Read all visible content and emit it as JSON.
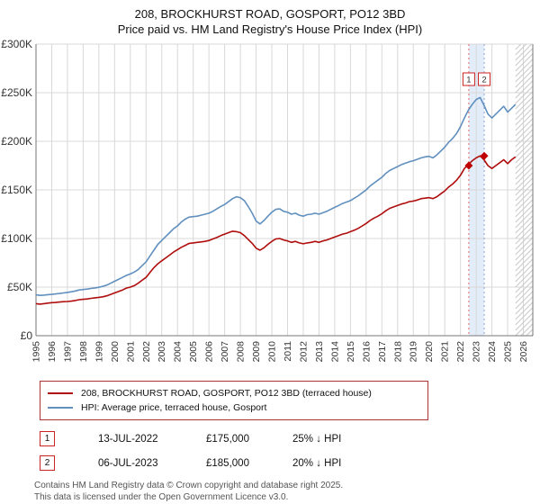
{
  "header": {
    "title": "208, BROCKHURST ROAD, GOSPORT, PO12 3BD",
    "subtitle": "Price paid vs. HM Land Registry's House Price Index (HPI)"
  },
  "chart_data": {
    "type": "line",
    "unit": "GBP thousands",
    "x_range": [
      1995,
      2026.6
    ],
    "ylim": [
      0,
      300
    ],
    "x_start": 1995.0,
    "x_step": 0.25,
    "x_ticks": [
      1995,
      1996,
      1997,
      1998,
      1999,
      2000,
      2001,
      2002,
      2003,
      2004,
      2005,
      2006,
      2007,
      2008,
      2009,
      2010,
      2011,
      2012,
      2013,
      2014,
      2015,
      2016,
      2017,
      2018,
      2019,
      2020,
      2021,
      2022,
      2023,
      2024,
      2025,
      2026
    ],
    "y_ticks": [
      {
        "value": 0,
        "label": "£0"
      },
      {
        "value": 50,
        "label": "£50K"
      },
      {
        "value": 100,
        "label": "£100K"
      },
      {
        "value": 150,
        "label": "£150K"
      },
      {
        "value": 200,
        "label": "£200K"
      },
      {
        "value": 250,
        "label": "£250K"
      },
      {
        "value": 300,
        "label": "£300K"
      }
    ],
    "series": [
      {
        "name": "price-paid",
        "label": "208, BROCKHURST ROAD, GOSPORT, PO12 3BD (terraced house)",
        "color": "#b00d0d",
        "values": [
          33,
          32.5,
          33,
          33.5,
          34,
          34.2,
          34.6,
          35,
          35.2,
          35.6,
          36.2,
          37,
          37.4,
          37.8,
          38.4,
          39,
          39.4,
          40,
          41,
          42.5,
          44,
          45.5,
          47,
          49,
          50,
          51.5,
          54,
          57,
          60,
          65,
          70,
          74,
          77,
          80,
          83,
          86,
          88.5,
          91,
          93,
          95,
          95.5,
          96,
          96.5,
          97,
          98,
          99.5,
          101,
          103,
          104.5,
          106,
          107.5,
          107,
          106,
          103,
          99,
          95,
          90,
          88,
          90.5,
          94,
          97,
          99.5,
          100,
          98.5,
          97.5,
          96,
          97,
          95.5,
          94.5,
          95.5,
          96,
          97,
          96,
          97.5,
          98.5,
          100,
          101.5,
          103,
          104.5,
          105.5,
          107,
          108.5,
          110.5,
          113,
          115.5,
          118.5,
          121,
          123,
          125.5,
          128.5,
          131,
          132.5,
          134,
          135.5,
          136.5,
          138,
          138.5,
          139.5,
          141,
          141.5,
          142,
          141,
          143,
          146,
          149,
          153,
          156,
          160,
          165,
          172,
          176,
          180,
          183,
          185,
          181,
          175,
          172,
          175,
          178,
          181,
          177,
          181,
          184
        ]
      },
      {
        "name": "hpi",
        "label": "HPI: Average price, terraced house, Gosport",
        "color": "#6190bf",
        "values": [
          42,
          41.5,
          41.8,
          42.2,
          42.5,
          43,
          43.4,
          44,
          44.5,
          45.2,
          46,
          47,
          47.5,
          48,
          48.6,
          49.2,
          49.8,
          50.8,
          52,
          54,
          56,
          58,
          60,
          62,
          63.5,
          65.5,
          68,
          72,
          76,
          82,
          88,
          94,
          98,
          102,
          106,
          110,
          113,
          117,
          120,
          122,
          122.5,
          123,
          124,
          125,
          126,
          128,
          130.5,
          133,
          135,
          138,
          141,
          143,
          142,
          139,
          133,
          126,
          118,
          115,
          118.5,
          123,
          127,
          130,
          130.5,
          128,
          127,
          125,
          126,
          124,
          123,
          124.5,
          125,
          126,
          125,
          126.5,
          128,
          130,
          132,
          134,
          136,
          137.5,
          139,
          141.5,
          144,
          147,
          150,
          154,
          157,
          160,
          163,
          167,
          170,
          172,
          174,
          176,
          177.5,
          179,
          180,
          181.5,
          183,
          184,
          184.5,
          183,
          186,
          190,
          194,
          199,
          203,
          208,
          215,
          224,
          232,
          238,
          243,
          245,
          237,
          228,
          224,
          228,
          232,
          236,
          230,
          234,
          238
        ]
      }
    ],
    "band": {
      "from": 2022.53,
      "to": 2023.51,
      "color": "#e3edf9"
    },
    "future_hatch_from": 2025.5,
    "sales": [
      {
        "n": "1",
        "x": 2022.53,
        "value": 175,
        "line_color": "#e06666"
      },
      {
        "n": "2",
        "x": 2023.51,
        "value": 185,
        "line_color": "#8aa0d0"
      }
    ]
  },
  "transactions": [
    {
      "n": "1",
      "date": "13-JUL-2022",
      "price": "£175,000",
      "vs_hpi": "25% ↓ HPI"
    },
    {
      "n": "2",
      "date": "06-JUL-2023",
      "price": "£185,000",
      "vs_hpi": "20% ↓ HPI"
    }
  ],
  "footer": {
    "line1": "Contains HM Land Registry data © Crown copyright and database right 2025.",
    "line2": "This data is licensed under the Open Government Licence v3.0."
  }
}
